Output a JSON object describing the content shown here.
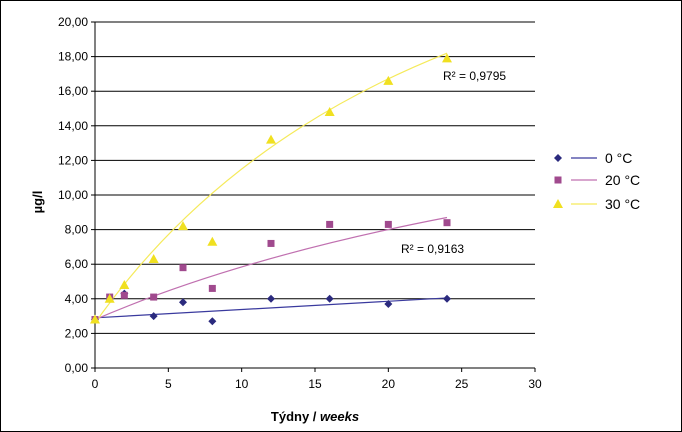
{
  "chart_data": {
    "type": "scatter",
    "title": "",
    "xlabel_main": "Týdny / ",
    "xlabel_italic": "weeks",
    "ylabel": "µg/l",
    "xlim": [
      0,
      30
    ],
    "ylim": [
      0,
      20
    ],
    "x_ticks": [
      "0",
      "5",
      "10",
      "15",
      "20",
      "25",
      "30"
    ],
    "y_ticks": [
      "0,00",
      "2,00",
      "4,00",
      "6,00",
      "8,00",
      "10,00",
      "12,00",
      "14,00",
      "16,00",
      "18,00",
      "20,00"
    ],
    "grid": "horizontal",
    "legend_position": "right",
    "series": [
      {
        "name": "0 °C",
        "marker": "diamond",
        "color": "#2b2a7e",
        "x": [
          0,
          1,
          2,
          4,
          6,
          8,
          12,
          16,
          20,
          24
        ],
        "y": [
          2.8,
          4.0,
          4.3,
          3.0,
          3.8,
          2.7,
          4.0,
          4.0,
          3.7,
          4.0
        ],
        "trend": {
          "x0": 0,
          "y0": 2.9,
          "x1": 24,
          "y1": 4.05
        },
        "r2": ""
      },
      {
        "name": "20 °C",
        "marker": "square",
        "color": "#a04a8e",
        "x": [
          0,
          1,
          2,
          4,
          6,
          8,
          12,
          16,
          20,
          24
        ],
        "y": [
          2.8,
          4.1,
          4.2,
          4.1,
          5.8,
          4.6,
          7.2,
          8.3,
          8.3,
          8.4
        ],
        "trend": {
          "x0": 0,
          "y0": 2.8,
          "x1": 24,
          "y1": 8.7
        },
        "r2": "R² = 0,9163"
      },
      {
        "name": "30 °C",
        "marker": "triangle",
        "color": "#f0e020",
        "x": [
          0,
          1,
          2,
          4,
          6,
          8,
          12,
          16,
          20,
          24
        ],
        "y": [
          2.8,
          4.0,
          4.8,
          6.3,
          8.2,
          7.3,
          13.2,
          14.8,
          16.6,
          17.9
        ],
        "trend": {
          "x0": 0,
          "y0": 2.6,
          "x1": 24,
          "y1": 18.2
        },
        "r2": "R² = 0,9795"
      }
    ],
    "colors": {
      "plot_background": "#ffffff",
      "grid": "#000000",
      "line_0C": "#3a3a9e",
      "line_20C": "#c070b0",
      "line_30C": "#f5ea5a"
    }
  }
}
